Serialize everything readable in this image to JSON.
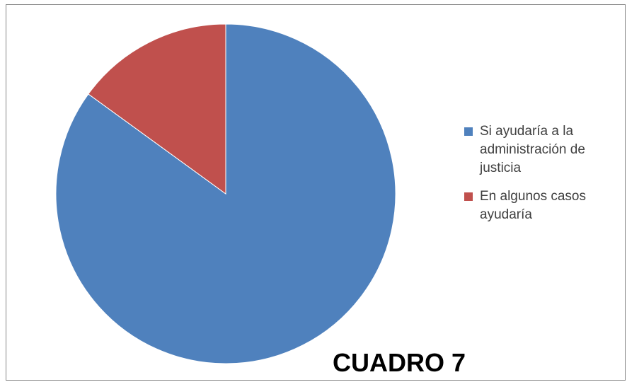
{
  "chart_data": {
    "type": "pie",
    "title": "",
    "slices": [
      {
        "name": "Si ayudaría a la administración de justicia",
        "value": 85,
        "color": "#4F81BD"
      },
      {
        "name": "En algunos casos ayudaría",
        "value": 15,
        "color": "#C0504D"
      }
    ],
    "legend_position": "right"
  },
  "overlay": {
    "label": "CUADRO 7"
  }
}
